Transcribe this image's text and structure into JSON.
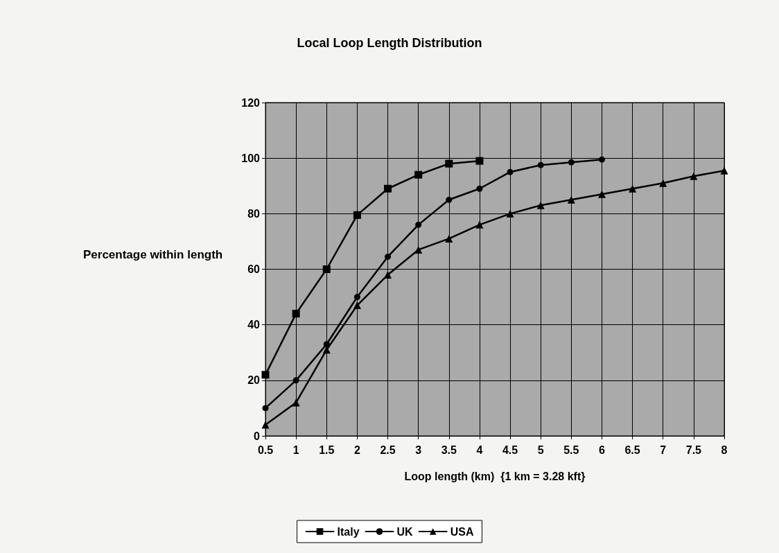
{
  "chart_data": {
    "type": "line",
    "title": "Local Loop Length Distribution",
    "xlabel": "Loop length (km)  {1 km = 3.28 kft}",
    "ylabel": "Percentage within length",
    "categories": [
      "0.5",
      "1",
      "1.5",
      "2",
      "2.5",
      "3",
      "3.5",
      "4",
      "4.5",
      "5",
      "5.5",
      "6",
      "6.5",
      "7",
      "7.5",
      "8"
    ],
    "series": [
      {
        "name": "Italy",
        "color": "#000000",
        "marker": "square",
        "values": [
          22,
          44,
          60,
          79.5,
          89,
          94,
          98,
          99,
          null,
          null,
          null,
          null,
          null,
          null,
          null,
          null
        ]
      },
      {
        "name": "UK",
        "color": "#000000",
        "marker": "circle",
        "values": [
          10,
          20,
          33,
          50,
          64.5,
          76,
          85,
          89,
          95,
          97.5,
          98.5,
          99.5,
          null,
          null,
          null,
          null
        ]
      },
      {
        "name": "USA",
        "color": "#000000",
        "marker": "triangle",
        "values": [
          4,
          12,
          31,
          47,
          58,
          67,
          71,
          76,
          80,
          83,
          85,
          87,
          89,
          91,
          93.5,
          95.5
        ]
      }
    ],
    "ylim": [
      0,
      120
    ],
    "yticks": [
      0,
      20,
      40,
      60,
      80,
      100,
      120
    ],
    "grid": true,
    "legend": "bottom",
    "line_style": "solid"
  }
}
